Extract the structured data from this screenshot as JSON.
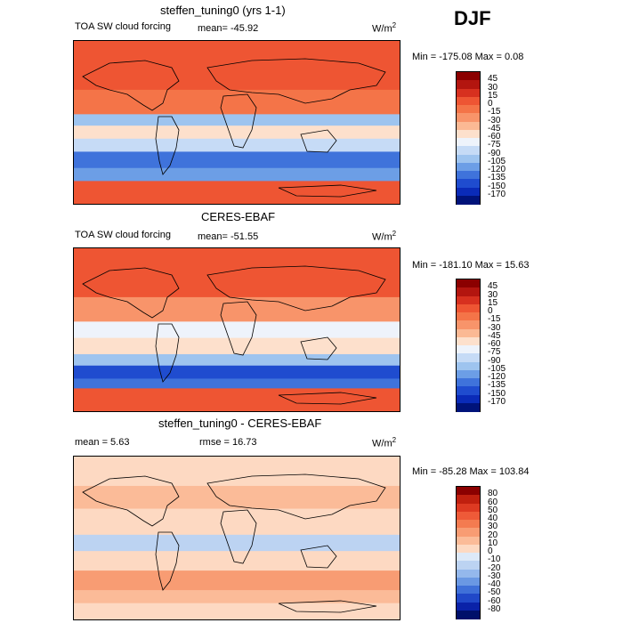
{
  "season": "DJF",
  "panels": [
    {
      "title": "steffen_tuning0 (yrs 1-1)",
      "variable": "TOA SW cloud forcing",
      "mean": "mean=  -45.92",
      "rmse": "",
      "units": "W/m",
      "units_sup": "2",
      "minmax": "Min = -175.08 Max =    0.08",
      "levels": [
        "45",
        "30",
        "15",
        "0",
        "-15",
        "-30",
        "-45",
        "-60",
        "-75",
        "-90",
        "-105",
        "-120",
        "-135",
        "-150",
        "-170"
      ],
      "colors": [
        "#8b0000",
        "#b3150f",
        "#d7301f",
        "#ee5533",
        "#f47448",
        "#f8946a",
        "#fbb994",
        "#fde0cc",
        "#eef3fb",
        "#c6dbf6",
        "#9ec4ef",
        "#6c9ee6",
        "#3f73db",
        "#1f4ccf",
        "#0a2bb8",
        "#00137a"
      ]
    },
    {
      "title": "CERES-EBAF",
      "variable": "TOA SW cloud forcing",
      "mean": "mean=  -51.55",
      "rmse": "",
      "units": "W/m",
      "units_sup": "2",
      "minmax": "Min = -181.10 Max =  15.63",
      "levels": [
        "45",
        "30",
        "15",
        "0",
        "-15",
        "-30",
        "-45",
        "-60",
        "-75",
        "-90",
        "-105",
        "-120",
        "-135",
        "-150",
        "-170"
      ],
      "colors": [
        "#8b0000",
        "#b3150f",
        "#d7301f",
        "#ee5533",
        "#f47448",
        "#f8946a",
        "#fbb994",
        "#fde0cc",
        "#eef3fb",
        "#c6dbf6",
        "#9ec4ef",
        "#6c9ee6",
        "#3f73db",
        "#1f4ccf",
        "#0a2bb8",
        "#00137a"
      ]
    },
    {
      "title": "steffen_tuning0 - CERES-EBAF",
      "variable": "",
      "mean": "mean =     5.63",
      "rmse": "rmse =    16.73",
      "units": "W/m",
      "units_sup": "2",
      "minmax": "Min = -85.28 Max = 103.84",
      "levels": [
        "80",
        "60",
        "50",
        "40",
        "30",
        "20",
        "10",
        "0",
        "-10",
        "-20",
        "-30",
        "-40",
        "-50",
        "-60",
        "-80"
      ],
      "colors": [
        "#8b0000",
        "#c0200f",
        "#dd3a22",
        "#ee5a38",
        "#f47b50",
        "#f89c73",
        "#fbbb98",
        "#fdd9c2",
        "#dde9f8",
        "#bcd3f2",
        "#94b8ec",
        "#6a98e3",
        "#3f70d8",
        "#2048c8",
        "#0a22a8",
        "#00106a"
      ]
    }
  ]
}
